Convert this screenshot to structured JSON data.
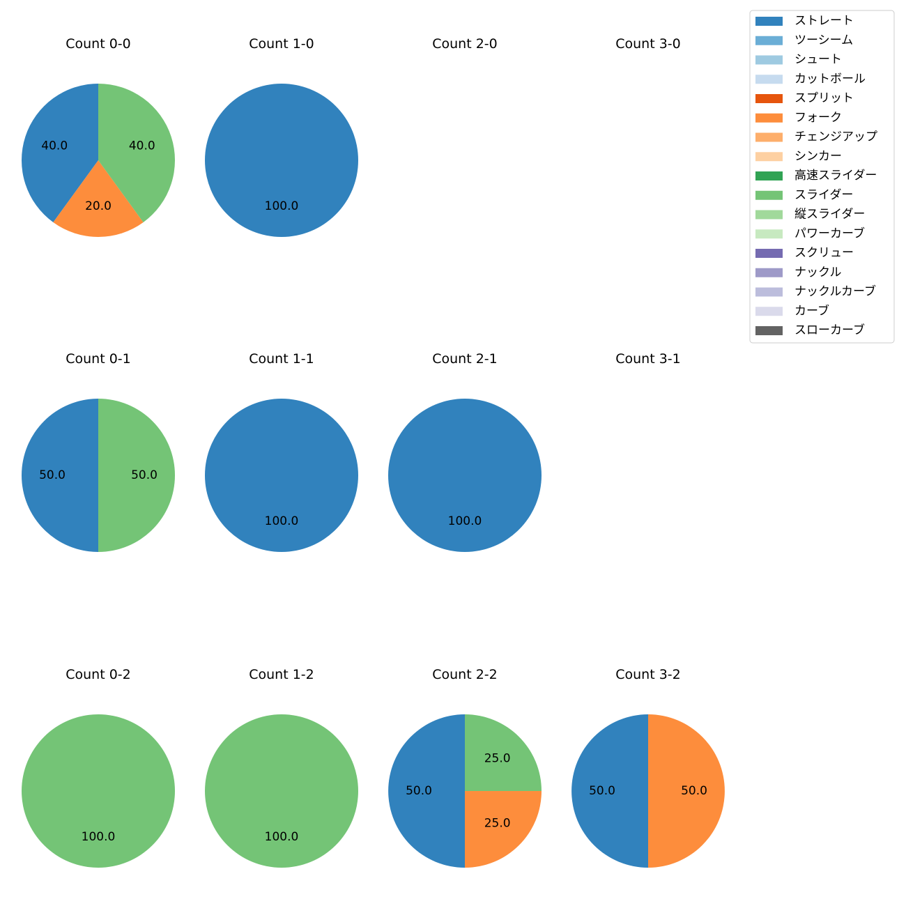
{
  "chart_data": {
    "type": "pie",
    "legend": {
      "placement": "top-right",
      "entries": [
        {
          "name": "ストレート",
          "color": "#3182bd"
        },
        {
          "name": "ツーシーム",
          "color": "#6baed6"
        },
        {
          "name": "シュート",
          "color": "#9ecae1"
        },
        {
          "name": "カットボール",
          "color": "#c6dbef"
        },
        {
          "name": "スプリット",
          "color": "#e6550d"
        },
        {
          "name": "フォーク",
          "color": "#fd8d3c"
        },
        {
          "name": "チェンジアップ",
          "color": "#fdae6b"
        },
        {
          "name": "シンカー",
          "color": "#fdd0a2"
        },
        {
          "name": "高速スライダー",
          "color": "#31a354"
        },
        {
          "name": "スライダー",
          "color": "#74c476"
        },
        {
          "name": "縦スライダー",
          "color": "#a1d99b"
        },
        {
          "name": "パワーカーブ",
          "color": "#c7e9c0"
        },
        {
          "name": "スクリュー",
          "color": "#756bb1"
        },
        {
          "name": "ナックル",
          "color": "#9e9ac8"
        },
        {
          "name": "ナックルカーブ",
          "color": "#bcbddc"
        },
        {
          "name": "カーブ",
          "color": "#dadaeb"
        },
        {
          "name": "スローカーブ",
          "color": "#636363"
        }
      ]
    },
    "panels": [
      {
        "title": "Count 0-0",
        "balls": 0,
        "strikes": 0,
        "slices": [
          {
            "pitch": "ストレート",
            "value": 40.0,
            "label": "40.0"
          },
          {
            "pitch": "フォーク",
            "value": 20.0,
            "label": "20.0"
          },
          {
            "pitch": "スライダー",
            "value": 40.0,
            "label": "40.0"
          }
        ]
      },
      {
        "title": "Count 1-0",
        "balls": 1,
        "strikes": 0,
        "slices": [
          {
            "pitch": "ストレート",
            "value": 100.0,
            "label": "100.0"
          }
        ]
      },
      {
        "title": "Count 2-0",
        "balls": 2,
        "strikes": 0,
        "slices": []
      },
      {
        "title": "Count 3-0",
        "balls": 3,
        "strikes": 0,
        "slices": []
      },
      {
        "title": "Count 0-1",
        "balls": 0,
        "strikes": 1,
        "slices": [
          {
            "pitch": "ストレート",
            "value": 50.0,
            "label": "50.0"
          },
          {
            "pitch": "スライダー",
            "value": 50.0,
            "label": "50.0"
          }
        ]
      },
      {
        "title": "Count 1-1",
        "balls": 1,
        "strikes": 1,
        "slices": [
          {
            "pitch": "ストレート",
            "value": 100.0,
            "label": "100.0"
          }
        ]
      },
      {
        "title": "Count 2-1",
        "balls": 2,
        "strikes": 1,
        "slices": [
          {
            "pitch": "ストレート",
            "value": 100.0,
            "label": "100.0"
          }
        ]
      },
      {
        "title": "Count 3-1",
        "balls": 3,
        "strikes": 1,
        "slices": []
      },
      {
        "title": "Count 0-2",
        "balls": 0,
        "strikes": 2,
        "slices": [
          {
            "pitch": "スライダー",
            "value": 100.0,
            "label": "100.0"
          }
        ]
      },
      {
        "title": "Count 1-2",
        "balls": 1,
        "strikes": 2,
        "slices": [
          {
            "pitch": "スライダー",
            "value": 100.0,
            "label": "100.0"
          }
        ]
      },
      {
        "title": "Count 2-2",
        "balls": 2,
        "strikes": 2,
        "slices": [
          {
            "pitch": "ストレート",
            "value": 50.0,
            "label": "50.0"
          },
          {
            "pitch": "フォーク",
            "value": 25.0,
            "label": "25.0"
          },
          {
            "pitch": "スライダー",
            "value": 25.0,
            "label": "25.0"
          }
        ]
      },
      {
        "title": "Count 3-2",
        "balls": 3,
        "strikes": 2,
        "slices": [
          {
            "pitch": "ストレート",
            "value": 50.0,
            "label": "50.0"
          },
          {
            "pitch": "フォーク",
            "value": 50.0,
            "label": "50.0"
          }
        ]
      }
    ]
  }
}
